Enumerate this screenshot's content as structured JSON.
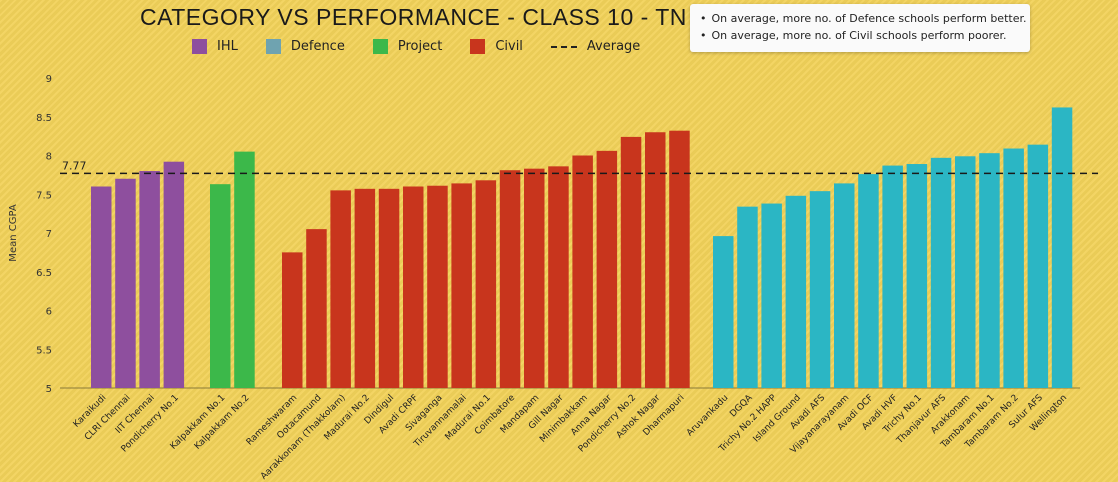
{
  "chart_data": {
    "type": "bar",
    "title": "CATEGORY VS PERFORMANCE - CLASS 10 - TN",
    "xlabel": "",
    "ylabel": "Mean CGPA",
    "ylim": [
      5,
      9
    ],
    "yticks": [
      "5",
      "5.5",
      "6",
      "6.5",
      "7",
      "7.5",
      "8",
      "8.5",
      "9"
    ],
    "grid": false,
    "legend_position": "top",
    "average": {
      "label": "Average",
      "value": 7.77,
      "display": "7.77"
    },
    "colors": {
      "IHL": "#8e4f9e",
      "Defence": "#6fa3b0",
      "Project": "#3cb84a",
      "Civil": "#c8351d",
      "Defence_bars": "#2bb6c4"
    },
    "series": [
      {
        "name": "IHL",
        "categories": [
          "Karaikudi",
          "CLRI Chennai",
          "IIT Chennai",
          "Pondicherry No.1"
        ],
        "values": [
          7.6,
          7.7,
          7.8,
          7.92
        ]
      },
      {
        "name": "Project",
        "categories": [
          "Kalpakkam No.1",
          "Kalpakkam No.2"
        ],
        "values": [
          7.63,
          8.05
        ]
      },
      {
        "name": "Civil",
        "categories": [
          "Rameshwaram",
          "Ootacamund",
          "Aarakkonam (Thakkolam)",
          "Madurai No.2",
          "Dindigul",
          "Avadi CRPF",
          "Sivaganga",
          "Tiruvannamalai",
          "Madurai No.1",
          "Coimbatore",
          "Mandapam",
          "Gill Nagar",
          "Minimbakkam",
          "Anna Nagar",
          "Pondicherry No.2",
          "Ashok Nagar",
          "Dharmapuri"
        ],
        "values": [
          6.75,
          7.05,
          7.55,
          7.57,
          7.57,
          7.6,
          7.61,
          7.64,
          7.68,
          7.81,
          7.83,
          7.86,
          8.0,
          8.06,
          8.24,
          8.3,
          8.32
        ]
      },
      {
        "name": "Defence",
        "categories": [
          "Aruvankadu",
          "DGQA",
          "Trichy No.2 HAPP",
          "Island Ground",
          "Avadi AFS",
          "Vijayanarayanam",
          "Avadi OCF",
          "Avadi HVF",
          "Trichy No.1",
          "Thanjavur AFS",
          "Arakkonam",
          "Tambaram No.1",
          "Tambaram No.2",
          "Sulur AFS",
          "Wellington"
        ],
        "values": [
          6.96,
          7.34,
          7.38,
          7.48,
          7.54,
          7.64,
          7.76,
          7.87,
          7.89,
          7.97,
          7.99,
          8.03,
          8.09,
          8.14,
          8.62
        ]
      }
    ]
  },
  "legend": {
    "items": [
      {
        "label": "IHL",
        "color": "#8e4f9e"
      },
      {
        "label": "Defence",
        "color": "#6fa3b0"
      },
      {
        "label": "Project",
        "color": "#3cb84a"
      },
      {
        "label": "Civil",
        "color": "#c8351d"
      }
    ],
    "average_label": "Average"
  },
  "notes": [
    "On average, more no. of Defence schools perform better.",
    "On average, more no. of Civil schools perform poorer."
  ]
}
